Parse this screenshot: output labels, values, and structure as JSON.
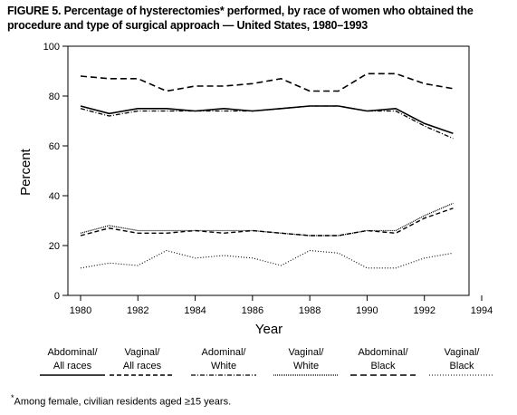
{
  "title": "FIGURE 5. Percentage of hysterectomies* performed, by race of women who obtained the procedure and type of surgical approach — United States, 1980–1993",
  "footnote": {
    "marker": "*",
    "text": "Among female, civilian residents aged ≥15 years."
  },
  "chart_data": {
    "type": "line",
    "xlabel": "Year",
    "ylabel": "Percent",
    "xlim": [
      1980,
      1994
    ],
    "ylim": [
      0,
      100
    ],
    "x_ticks": [
      1980,
      1982,
      1984,
      1986,
      1988,
      1990,
      1992,
      1994
    ],
    "y_ticks": [
      0,
      20,
      40,
      60,
      80,
      100
    ],
    "x_tick_labels": [
      "1980",
      "1982",
      "1984",
      "1986",
      "1988",
      "1990",
      "1992",
      "1994"
    ],
    "y_tick_labels": [
      "0",
      "20",
      "40",
      "60",
      "80",
      "100"
    ],
    "grid": false,
    "legend_position": "bottom",
    "x": [
      1980,
      1981,
      1982,
      1983,
      1984,
      1985,
      1986,
      1987,
      1988,
      1989,
      1990,
      1991,
      1992,
      1993
    ],
    "series": [
      {
        "name": "Abdominal/ All races",
        "label_line1": "Abdominal/",
        "label_line2": "All races",
        "style": "solid",
        "values": [
          76,
          73,
          75,
          75,
          74,
          75,
          74,
          75,
          76,
          76,
          74,
          75,
          69,
          65
        ]
      },
      {
        "name": "Vaginal/ All races",
        "label_line1": "Vaginal/",
        "label_line2": "All races",
        "style": "dash",
        "values": [
          24,
          27,
          25,
          25,
          26,
          25,
          26,
          25,
          24,
          24,
          26,
          25,
          31,
          35
        ]
      },
      {
        "name": "Adominal/ White",
        "label_line1": "Adominal/",
        "label_line2": "White",
        "style": "dashdot",
        "values": [
          75,
          72,
          74,
          74,
          74,
          74,
          74,
          75,
          76,
          76,
          74,
          74,
          68,
          63
        ]
      },
      {
        "name": "Vaginal/ White",
        "label_line1": "Vaginal/",
        "label_line2": "White",
        "style": "dotdense",
        "values": [
          25,
          28,
          26,
          26,
          26,
          26,
          26,
          25,
          24,
          24,
          26,
          26,
          32,
          37
        ]
      },
      {
        "name": "Abdominal/ Black",
        "label_line1": "Abdominal/",
        "label_line2": "Black",
        "style": "longdash",
        "values": [
          88,
          87,
          87,
          82,
          84,
          84,
          85,
          87,
          82,
          82,
          89,
          89,
          85,
          83
        ]
      },
      {
        "name": "Vaginal/ Black",
        "label_line1": "Vaginal/",
        "label_line2": "Black",
        "style": "dot",
        "values": [
          11,
          13,
          12,
          18,
          15,
          16,
          15,
          12,
          18,
          17,
          11,
          11,
          15,
          17
        ]
      }
    ]
  }
}
